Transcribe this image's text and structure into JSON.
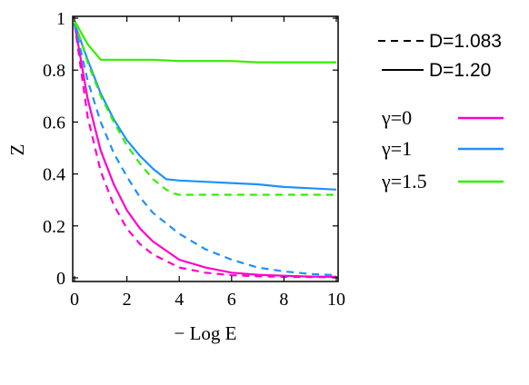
{
  "chart_data": {
    "type": "line",
    "title": "",
    "xlabel": "− Log E",
    "ylabel": "Z",
    "xlim": [
      0,
      10
    ],
    "ylim": [
      0,
      1
    ],
    "x_ticks": [
      "0",
      "2",
      "4",
      "6",
      "8",
      "10"
    ],
    "y_ticks": [
      "0",
      "0.2",
      "0.4",
      "0.6",
      "0.8",
      "1"
    ],
    "grid": false,
    "legend_position": "right",
    "style_legend": [
      {
        "label": "D=1.083",
        "dash": "dashed"
      },
      {
        "label": "D=1.20",
        "dash": "solid"
      }
    ],
    "color_legend": [
      {
        "label": "γ=0",
        "color": "#ff00cc"
      },
      {
        "label": "γ=1",
        "color": "#1e90ff"
      },
      {
        "label": "γ=1.5",
        "color": "#33ee00"
      }
    ],
    "series": [
      {
        "name": "γ=0, D=1.20",
        "color": "#ff00cc",
        "dash": "solid",
        "x": [
          0,
          0.5,
          1,
          1.5,
          2,
          2.5,
          3,
          4,
          5,
          6,
          7,
          8,
          9,
          10
        ],
        "y": [
          0.98,
          0.69,
          0.49,
          0.36,
          0.26,
          0.19,
          0.14,
          0.07,
          0.04,
          0.02,
          0.012,
          0.008,
          0.005,
          0.004
        ]
      },
      {
        "name": "γ=0, D=1.083",
        "color": "#ff00cc",
        "dash": "dashed",
        "x": [
          0,
          0.5,
          1,
          1.5,
          2,
          2.5,
          3,
          4,
          5,
          6,
          7,
          8,
          9,
          10
        ],
        "y": [
          0.98,
          0.62,
          0.41,
          0.28,
          0.19,
          0.13,
          0.09,
          0.04,
          0.02,
          0.01,
          0.006,
          0.004,
          0.003,
          0.002
        ]
      },
      {
        "name": "γ=1, D=1.20",
        "color": "#1e90ff",
        "dash": "solid",
        "x": [
          0,
          0.5,
          1,
          1.5,
          2,
          2.5,
          3,
          3.5,
          4,
          5,
          6,
          7,
          8,
          9,
          10
        ],
        "y": [
          0.98,
          0.84,
          0.71,
          0.61,
          0.53,
          0.47,
          0.42,
          0.38,
          0.375,
          0.37,
          0.365,
          0.36,
          0.35,
          0.345,
          0.34
        ]
      },
      {
        "name": "γ=1, D=1.083",
        "color": "#1e90ff",
        "dash": "dashed",
        "x": [
          0,
          0.5,
          1,
          1.5,
          2,
          2.5,
          3,
          4,
          5,
          6,
          7,
          8,
          9,
          10
        ],
        "y": [
          0.98,
          0.76,
          0.6,
          0.48,
          0.39,
          0.31,
          0.25,
          0.17,
          0.11,
          0.07,
          0.04,
          0.025,
          0.015,
          0.01
        ]
      },
      {
        "name": "γ=1.5, D=1.20",
        "color": "#33ee00",
        "dash": "solid",
        "x": [
          0,
          0.5,
          1,
          2,
          3,
          4,
          5,
          6,
          7,
          8,
          9,
          10
        ],
        "y": [
          0.99,
          0.9,
          0.84,
          0.84,
          0.84,
          0.835,
          0.835,
          0.835,
          0.83,
          0.83,
          0.83,
          0.83
        ]
      },
      {
        "name": "γ=1.5, D=1.083",
        "color": "#33ee00",
        "dash": "dashed",
        "x": [
          0,
          0.5,
          1,
          1.5,
          2,
          2.5,
          3,
          3.5,
          3.8,
          4,
          5,
          6,
          7,
          8,
          9,
          10
        ],
        "y": [
          0.99,
          0.83,
          0.7,
          0.6,
          0.51,
          0.44,
          0.38,
          0.34,
          0.325,
          0.32,
          0.32,
          0.32,
          0.32,
          0.32,
          0.32,
          0.32
        ]
      }
    ]
  }
}
